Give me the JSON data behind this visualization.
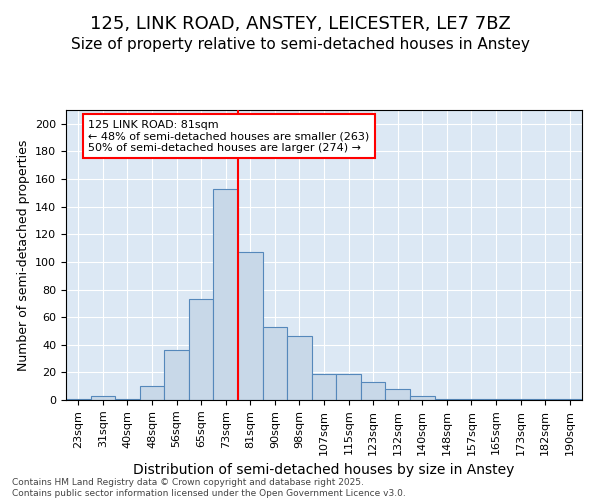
{
  "title1": "125, LINK ROAD, ANSTEY, LEICESTER, LE7 7BZ",
  "title2": "Size of property relative to semi-detached houses in Anstey",
  "xlabel": "Distribution of semi-detached houses by size in Anstey",
  "ylabel": "Number of semi-detached properties",
  "categories": [
    "23sqm",
    "31sqm",
    "40sqm",
    "48sqm",
    "56sqm",
    "65sqm",
    "73sqm",
    "81sqm",
    "90sqm",
    "98sqm",
    "107sqm",
    "115sqm",
    "123sqm",
    "132sqm",
    "140sqm",
    "148sqm",
    "157sqm",
    "165sqm",
    "173sqm",
    "182sqm",
    "190sqm"
  ],
  "values": [
    1,
    3,
    1,
    10,
    36,
    73,
    153,
    107,
    53,
    46,
    19,
    19,
    13,
    8,
    3,
    1,
    1,
    1,
    1,
    1,
    1
  ],
  "bar_color": "#c8d8e8",
  "bar_edge_color": "#5588bb",
  "red_line_xidx": 6.5,
  "annotation_text": "125 LINK ROAD: 81sqm\n← 48% of semi-detached houses are smaller (263)\n50% of semi-detached houses are larger (274) →",
  "ylim_max": 210,
  "yticks": [
    0,
    20,
    40,
    60,
    80,
    100,
    120,
    140,
    160,
    180,
    200
  ],
  "plot_bg_color": "#dce8f4",
  "footer_text": "Contains HM Land Registry data © Crown copyright and database right 2025.\nContains public sector information licensed under the Open Government Licence v3.0.",
  "title1_fontsize": 13,
  "title2_fontsize": 11,
  "xlabel_fontsize": 10,
  "ylabel_fontsize": 9,
  "tick_fontsize": 8,
  "annotation_fontsize": 8
}
